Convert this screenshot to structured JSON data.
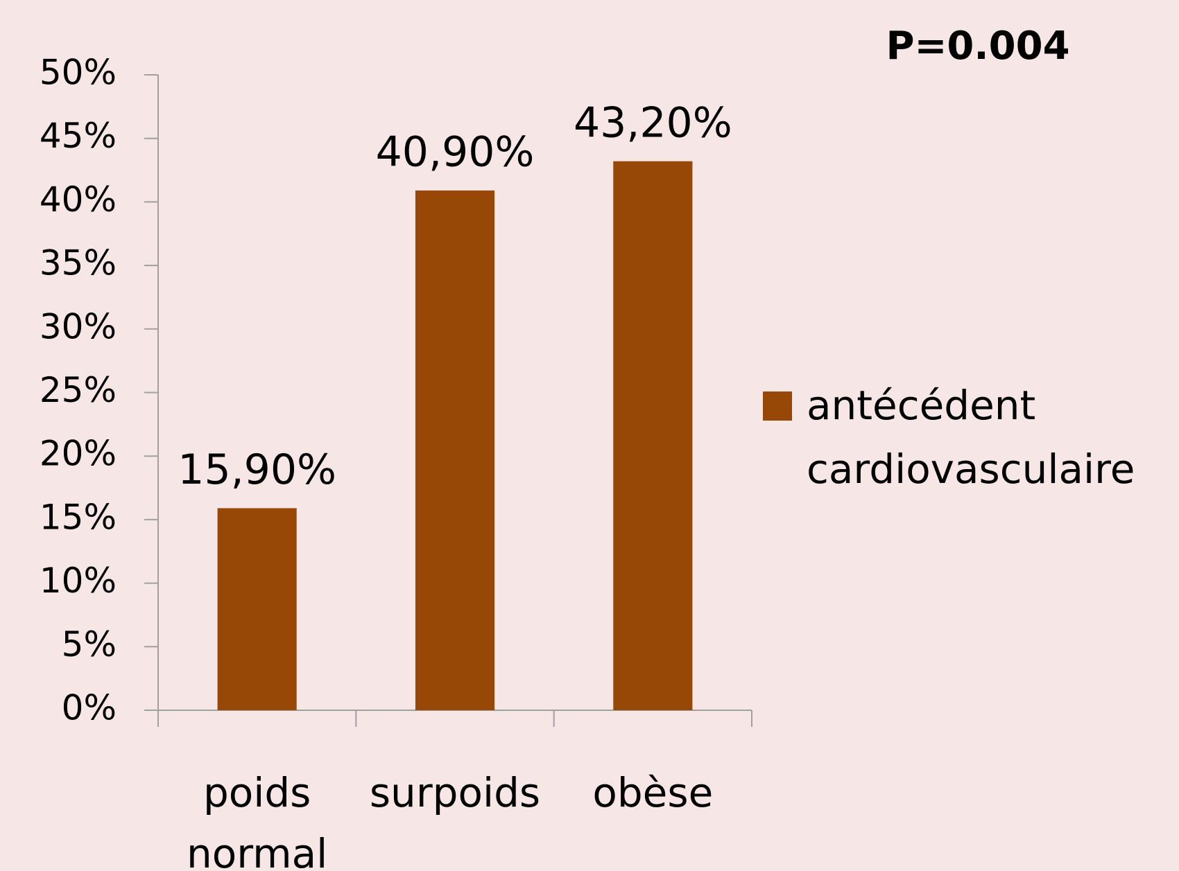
{
  "chart_data": {
    "type": "bar",
    "annotation": "P=0.004",
    "categories": [
      "poids normal",
      "surpoids",
      "obèse"
    ],
    "series": [
      {
        "name": "antécédent cardiovasculaire",
        "color": "#974706",
        "values": [
          15.9,
          40.9,
          43.2
        ],
        "value_labels": [
          "15,90%",
          "40,90%",
          "43,20%"
        ]
      }
    ],
    "ylim": [
      0,
      50
    ],
    "yticks": [
      {
        "value": 0,
        "label": "0%"
      },
      {
        "value": 5,
        "label": "5%"
      },
      {
        "value": 10,
        "label": "10%"
      },
      {
        "value": 15,
        "label": "15%"
      },
      {
        "value": 20,
        "label": "20%"
      },
      {
        "value": 25,
        "label": "25%"
      },
      {
        "value": 30,
        "label": "30%"
      },
      {
        "value": 35,
        "label": "35%"
      },
      {
        "value": 40,
        "label": "40%"
      },
      {
        "value": 45,
        "label": "45%"
      },
      {
        "value": 50,
        "label": "50%"
      }
    ],
    "legend": "right"
  }
}
